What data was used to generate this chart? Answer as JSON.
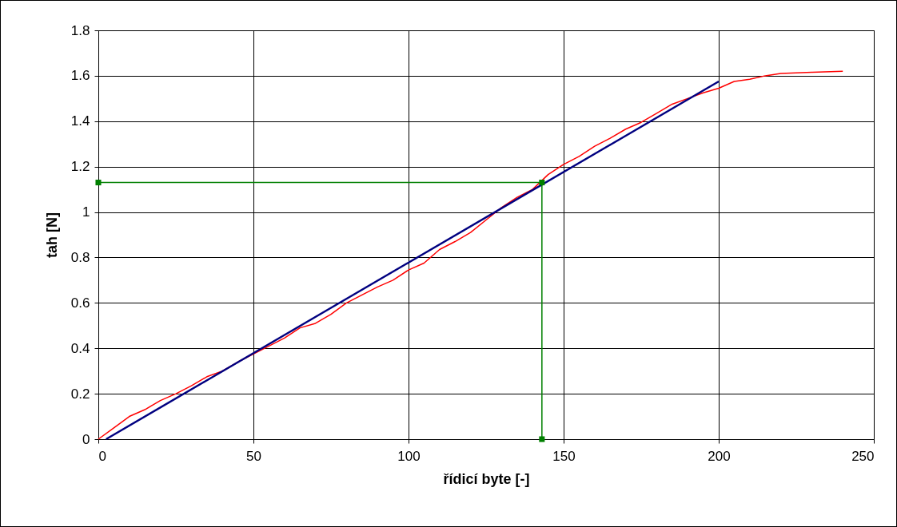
{
  "chart_data": {
    "type": "line",
    "xlabel": "řídicí byte [-]",
    "ylabel": "tah [N]",
    "xlim": [
      0,
      250
    ],
    "xticks": [
      0,
      50,
      100,
      150,
      200,
      250
    ],
    "ylim": [
      0,
      1.8
    ],
    "yticks": [
      0,
      0.2,
      0.4,
      0.6,
      0.8,
      1,
      1.2,
      1.4,
      1.6,
      1.8
    ],
    "grid": true,
    "line_style": "solid",
    "series": [
      {
        "color": "#ff0000",
        "marker": "none",
        "x": [
          0,
          5,
          10,
          15,
          20,
          25,
          30,
          35,
          40,
          45,
          50,
          55,
          60,
          65,
          70,
          75,
          80,
          85,
          90,
          95,
          100,
          105,
          110,
          115,
          120,
          125,
          130,
          135,
          140,
          145,
          150,
          155,
          160,
          165,
          170,
          175,
          180,
          185,
          190,
          195,
          200,
          205,
          210,
          215,
          220,
          230,
          240
        ],
        "values": [
          0,
          0.05,
          0.1,
          0.13,
          0.17,
          0.2,
          0.235,
          0.275,
          0.3,
          0.34,
          0.375,
          0.41,
          0.445,
          0.49,
          0.51,
          0.55,
          0.6,
          0.635,
          0.67,
          0.7,
          0.745,
          0.775,
          0.835,
          0.87,
          0.91,
          0.965,
          1.02,
          1.065,
          1.1,
          1.165,
          1.21,
          1.245,
          1.29,
          1.325,
          1.365,
          1.395,
          1.435,
          1.475,
          1.5,
          1.525,
          1.545,
          1.575,
          1.585,
          1.6,
          1.61,
          1.615,
          1.62
        ]
      },
      {
        "color": "#000080",
        "marker": "none",
        "x": [
          2.5,
          200
        ],
        "values": [
          0,
          1.575
        ]
      },
      {
        "color": "#008000",
        "marker": "square",
        "x": [
          0,
          143,
          143
        ],
        "values": [
          1.13,
          1.13,
          0
        ]
      }
    ]
  }
}
